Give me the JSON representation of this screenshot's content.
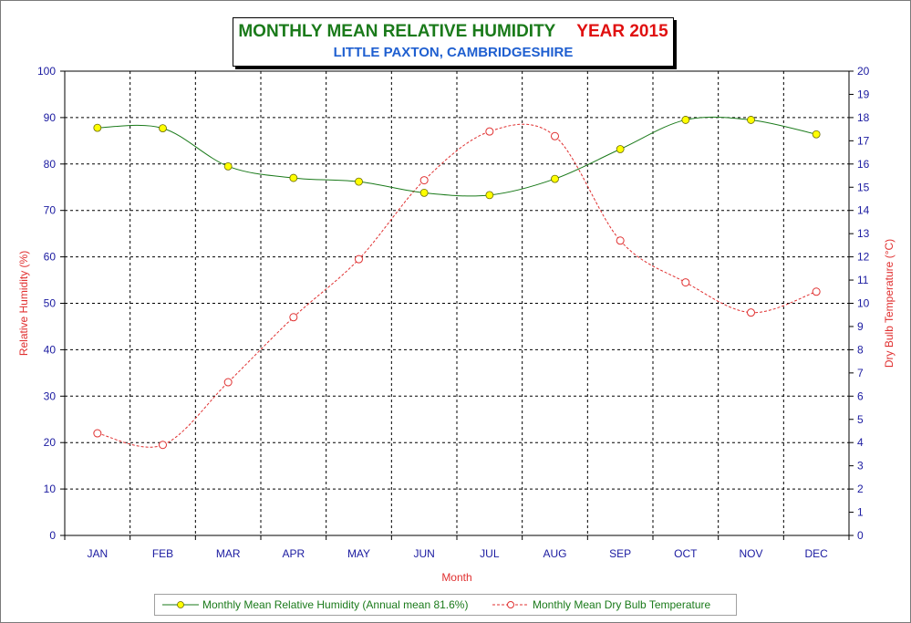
{
  "title": {
    "main": "MONTHLY MEAN RELATIVE HUMIDITY",
    "year": "YEAR 2015",
    "subtitle": "LITTLE PAXTON, CAMBRIDGESHIRE"
  },
  "colors": {
    "rh_line": "#1a7a1a",
    "rh_marker": "#ffff00",
    "temp_line": "#e03030",
    "axis_text": "#1a1aa0",
    "axis_title": "#e03030",
    "title_green": "#1a7a1a",
    "title_red": "#e01010",
    "subtitle_blue": "#1f5fd0"
  },
  "legend": {
    "rh_label": "Monthly Mean Relative Humidity (Annual mean 81.6%)",
    "temp_label": "Monthly Mean Dry Bulb Temperature"
  },
  "chart_data": {
    "type": "line",
    "categories": [
      "JAN",
      "FEB",
      "MAR",
      "APR",
      "MAY",
      "JUN",
      "JUL",
      "AUG",
      "SEP",
      "OCT",
      "NOV",
      "DEC"
    ],
    "xlabel": "Month",
    "ylabel": "Relative Humidity (%)",
    "y2label": "Dry Bulb Temperature (°C)",
    "ylim": [
      0,
      100
    ],
    "y_ticks": [
      0,
      10,
      20,
      30,
      40,
      50,
      60,
      70,
      80,
      90,
      100
    ],
    "y2lim": [
      0,
      20
    ],
    "y2_ticks": [
      0,
      1,
      2,
      3,
      4,
      5,
      6,
      7,
      8,
      9,
      10,
      11,
      12,
      13,
      14,
      15,
      16,
      17,
      18,
      19,
      20
    ],
    "grid": true,
    "legend_position": "bottom",
    "series": [
      {
        "name": "Monthly Mean Relative Humidity (Annual mean 81.6%)",
        "axis": "left",
        "values": [
          87.8,
          87.7,
          79.5,
          77.0,
          76.2,
          73.8,
          73.3,
          76.8,
          83.2,
          89.5,
          89.5,
          86.4
        ]
      },
      {
        "name": "Monthly Mean Dry Bulb Temperature",
        "axis": "right",
        "values": [
          4.4,
          3.9,
          6.6,
          9.4,
          11.9,
          15.3,
          17.4,
          17.2,
          12.7,
          10.9,
          9.6,
          10.5
        ]
      }
    ]
  }
}
